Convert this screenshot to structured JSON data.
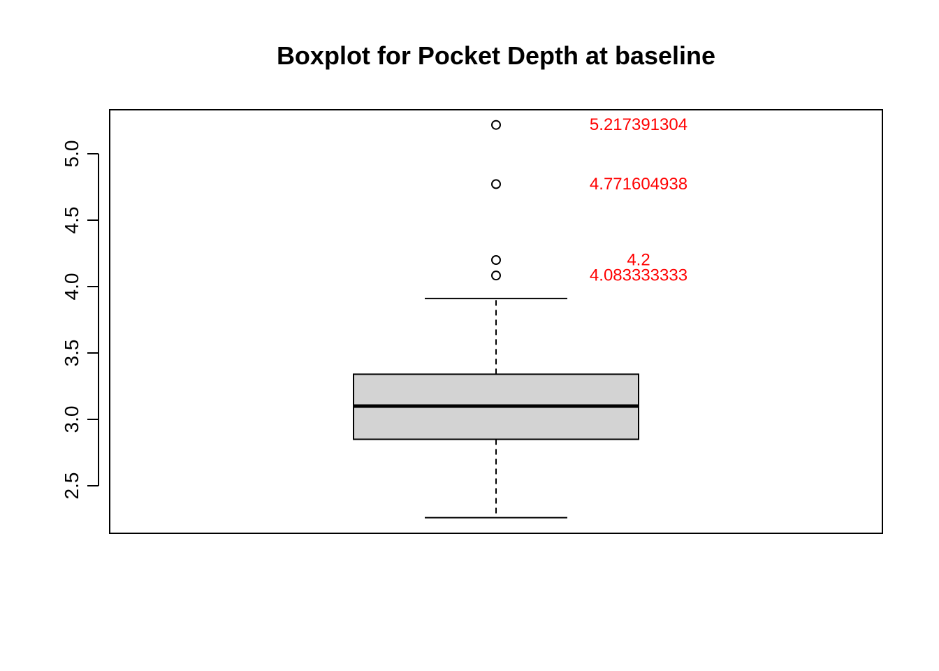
{
  "chart_data": {
    "type": "boxplot",
    "title": "Boxplot for Pocket Depth at baseline",
    "xlabel": "",
    "ylabel": "",
    "ylim": [
      2.2,
      5.3
    ],
    "yticks": [
      2.5,
      3.0,
      3.5,
      4.0,
      4.5,
      5.0
    ],
    "ytick_labels": [
      "2.5",
      "3.0",
      "3.5",
      "4.0",
      "4.5",
      "5.0"
    ],
    "grid": false,
    "box": {
      "whisker_low": 2.26,
      "q1": 2.85,
      "median": 3.1,
      "q3": 3.34,
      "whisker_high": 3.91,
      "fill": "#d3d3d3"
    },
    "outliers": [
      5.217391304,
      4.771604938,
      4.2,
      4.083333333
    ],
    "annotations": [
      {
        "text": "5.217391304",
        "y": 5.217391304
      },
      {
        "text": "4.771604938",
        "y": 4.771604938
      },
      {
        "text": "4.2",
        "y": 4.2
      },
      {
        "text": "4.083333333",
        "y": 4.083333333
      }
    ],
    "annotation_color": "#ff0000"
  }
}
